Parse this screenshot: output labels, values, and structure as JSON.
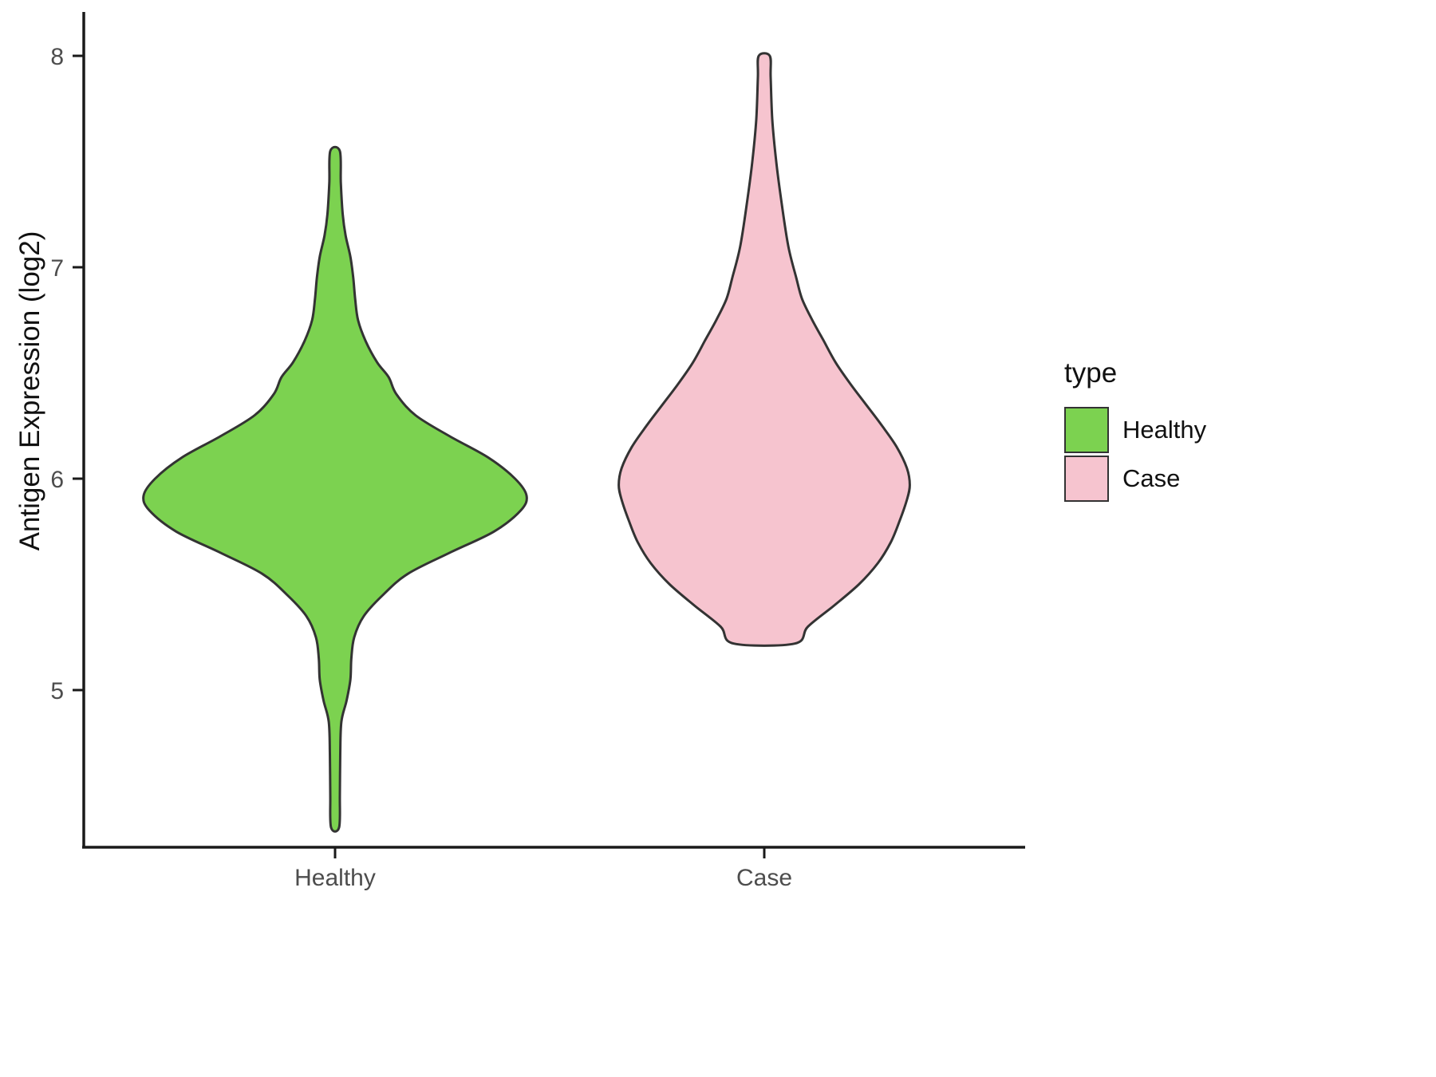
{
  "figure": {
    "background": "#ffffff",
    "axis_color": "#1a1a1a",
    "tick_label_color": "#4d4d4d"
  },
  "chart_data": {
    "type": "violin",
    "title": "",
    "xlabel": "",
    "ylabel": "Antigen Expression (log2)",
    "categories": [
      "Healthy",
      "Case"
    ],
    "ylim": [
      4.2,
      8.15
    ],
    "yticks": [
      5,
      6,
      7,
      8
    ],
    "grid": false,
    "legend": {
      "title": "type",
      "position": "right",
      "items": [
        {
          "label": "Healthy",
          "color": "#7CD250"
        },
        {
          "label": "Case",
          "color": "#F6C4CF"
        }
      ]
    },
    "series": [
      {
        "name": "Healthy",
        "fill": "#7CD250",
        "stroke": "#333333",
        "value_range": [
          4.35,
          7.55
        ],
        "peak_value": 5.92,
        "width_scale": 1.0,
        "profile": [
          [
            4.35,
            0.021
          ],
          [
            4.5,
            0.025
          ],
          [
            4.7,
            0.027
          ],
          [
            4.85,
            0.033
          ],
          [
            4.95,
            0.06
          ],
          [
            5.05,
            0.08
          ],
          [
            5.15,
            0.085
          ],
          [
            5.25,
            0.1
          ],
          [
            5.35,
            0.15
          ],
          [
            5.45,
            0.25
          ],
          [
            5.55,
            0.38
          ],
          [
            5.65,
            0.6
          ],
          [
            5.75,
            0.83
          ],
          [
            5.85,
            0.97
          ],
          [
            5.92,
            1.0
          ],
          [
            6.0,
            0.94
          ],
          [
            6.1,
            0.8
          ],
          [
            6.2,
            0.6
          ],
          [
            6.3,
            0.42
          ],
          [
            6.4,
            0.32
          ],
          [
            6.48,
            0.28
          ],
          [
            6.55,
            0.22
          ],
          [
            6.65,
            0.16
          ],
          [
            6.75,
            0.12
          ],
          [
            6.85,
            0.105
          ],
          [
            6.95,
            0.095
          ],
          [
            7.05,
            0.08
          ],
          [
            7.15,
            0.055
          ],
          [
            7.25,
            0.04
          ],
          [
            7.4,
            0.03
          ],
          [
            7.55,
            0.025
          ]
        ]
      },
      {
        "name": "Case",
        "fill": "#F6C4CF",
        "stroke": "#333333",
        "value_range": [
          5.22,
          8.0
        ],
        "peak_value": 5.97,
        "width_scale": 0.76,
        "profile": [
          [
            5.22,
            0.21
          ],
          [
            5.3,
            0.3
          ],
          [
            5.4,
            0.48
          ],
          [
            5.5,
            0.65
          ],
          [
            5.6,
            0.78
          ],
          [
            5.7,
            0.87
          ],
          [
            5.8,
            0.93
          ],
          [
            5.9,
            0.98
          ],
          [
            5.97,
            1.0
          ],
          [
            6.05,
            0.98
          ],
          [
            6.15,
            0.91
          ],
          [
            6.25,
            0.81
          ],
          [
            6.35,
            0.7
          ],
          [
            6.45,
            0.59
          ],
          [
            6.55,
            0.49
          ],
          [
            6.65,
            0.41
          ],
          [
            6.75,
            0.33
          ],
          [
            6.85,
            0.26
          ],
          [
            6.95,
            0.22
          ],
          [
            7.1,
            0.165
          ],
          [
            7.3,
            0.12
          ],
          [
            7.5,
            0.082
          ],
          [
            7.7,
            0.055
          ],
          [
            7.9,
            0.044
          ],
          [
            8.0,
            0.038
          ]
        ]
      }
    ]
  }
}
